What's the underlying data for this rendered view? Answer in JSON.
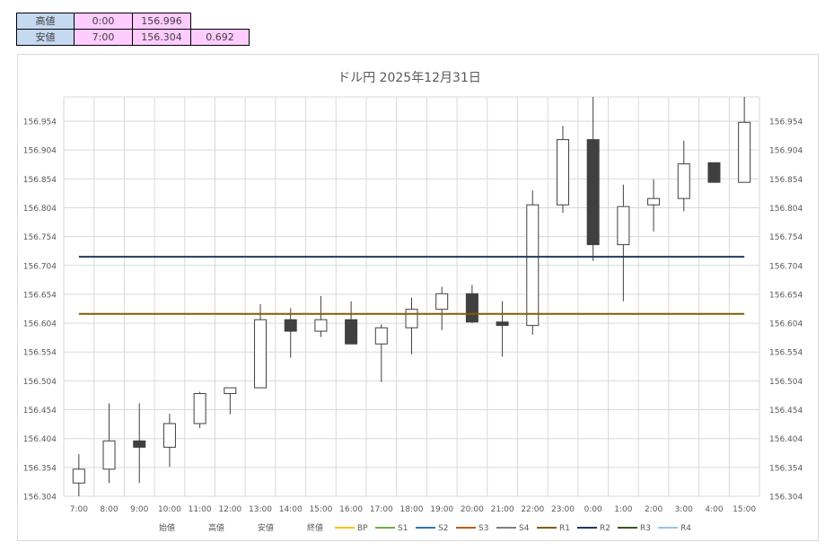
{
  "summary_table": {
    "rows": [
      {
        "label": "高値",
        "time": "0:00",
        "price": "156.996",
        "extra": ""
      },
      {
        "label": "安値",
        "time": "7:00",
        "price": "156.304",
        "extra": "0.692"
      }
    ]
  },
  "chart_data": {
    "type": "candlestick",
    "title": "ドル円  2025年12月31日",
    "categories": [
      "7:00",
      "8:00",
      "9:00",
      "10:00",
      "11:00",
      "12:00",
      "13:00",
      "14:00",
      "15:00",
      "16:00",
      "17:00",
      "18:00",
      "19:00",
      "20:00",
      "21:00",
      "22:00",
      "23:00",
      "0:00",
      "1:00",
      "2:00",
      "3:00",
      "4:00",
      "15:00"
    ],
    "ohlc": [
      {
        "o": 156.327,
        "h": 156.377,
        "l": 156.304,
        "c": 156.351
      },
      {
        "o": 156.351,
        "h": 156.465,
        "l": 156.327,
        "c": 156.4
      },
      {
        "o": 156.4,
        "h": 156.465,
        "l": 156.327,
        "c": 156.389
      },
      {
        "o": 156.389,
        "h": 156.447,
        "l": 156.355,
        "c": 156.43
      },
      {
        "o": 156.43,
        "h": 156.485,
        "l": 156.422,
        "c": 156.482
      },
      {
        "o": 156.482,
        "h": 156.492,
        "l": 156.446,
        "c": 156.492
      },
      {
        "o": 156.492,
        "h": 156.637,
        "l": 156.492,
        "c": 156.61
      },
      {
        "o": 156.61,
        "h": 156.63,
        "l": 156.544,
        "c": 156.59
      },
      {
        "o": 156.59,
        "h": 156.651,
        "l": 156.58,
        "c": 156.61
      },
      {
        "o": 156.61,
        "h": 156.642,
        "l": 156.568,
        "c": 156.568
      },
      {
        "o": 156.568,
        "h": 156.602,
        "l": 156.502,
        "c": 156.596
      },
      {
        "o": 156.596,
        "h": 156.648,
        "l": 156.55,
        "c": 156.628
      },
      {
        "o": 156.628,
        "h": 156.667,
        "l": 156.592,
        "c": 156.655
      },
      {
        "o": 156.655,
        "h": 156.67,
        "l": 156.604,
        "c": 156.606
      },
      {
        "o": 156.606,
        "h": 156.642,
        "l": 156.546,
        "c": 156.6
      },
      {
        "o": 156.6,
        "h": 156.834,
        "l": 156.584,
        "c": 156.809
      },
      {
        "o": 156.809,
        "h": 156.946,
        "l": 156.795,
        "c": 156.922
      },
      {
        "o": 156.922,
        "h": 156.996,
        "l": 156.712,
        "c": 156.74
      },
      {
        "o": 156.74,
        "h": 156.844,
        "l": 156.642,
        "c": 156.806
      },
      {
        "o": 156.809,
        "h": 156.853,
        "l": 156.763,
        "c": 156.82
      },
      {
        "o": 156.82,
        "h": 156.92,
        "l": 156.798,
        "c": 156.88
      },
      {
        "o": 156.882,
        "h": 156.882,
        "l": 156.848,
        "c": 156.848
      },
      {
        "o": 156.848,
        "h": 156.996,
        "l": 156.848,
        "c": 156.952
      }
    ],
    "ylim": [
      156.304,
      156.996
    ],
    "y_ticks": [
      "156.304",
      "156.354",
      "156.404",
      "156.454",
      "156.504",
      "156.554",
      "156.604",
      "156.654",
      "156.704",
      "156.754",
      "156.804",
      "156.854",
      "156.904",
      "156.954"
    ],
    "horizontal_lines": [
      {
        "name": "R2",
        "value": 156.719,
        "color": "#1f3864"
      },
      {
        "name": "R1",
        "value": 156.62,
        "color": "#7f6000"
      }
    ],
    "legend": {
      "position": "bottom",
      "ohlc_labels": [
        "始値",
        "高値",
        "安値",
        "終値"
      ],
      "entries": [
        {
          "name": "BP",
          "color": "#ffc000"
        },
        {
          "name": "S1",
          "color": "#70ad47"
        },
        {
          "name": "S2",
          "color": "#2e75b6"
        },
        {
          "name": "S3",
          "color": "#c55a11"
        },
        {
          "name": "S4",
          "color": "#7f7f7f"
        },
        {
          "name": "R1",
          "color": "#7f6000"
        },
        {
          "name": "R2",
          "color": "#1f3864"
        },
        {
          "name": "R3",
          "color": "#375623"
        },
        {
          "name": "R4",
          "color": "#9dc3e6"
        }
      ]
    },
    "grid": true,
    "colors": {
      "bear": "#404040",
      "bull": "#ffffff",
      "outline": "#404040",
      "grid": "#d9d9d9"
    }
  }
}
